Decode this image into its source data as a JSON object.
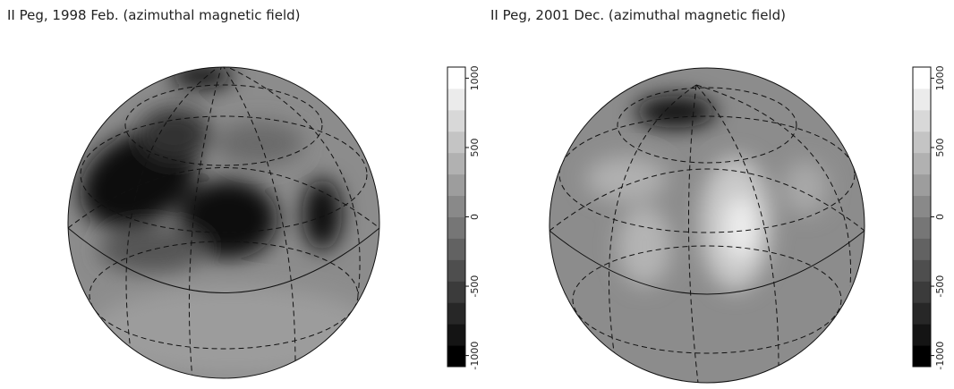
{
  "chart_data": [
    {
      "type": "map",
      "title": "II Peg, 1998 Feb. (azimuthal magnetic field)",
      "clim": [
        -1080,
        1080
      ],
      "cticks": [
        -1000,
        -500,
        0,
        500,
        1000
      ]
    },
    {
      "type": "map",
      "title": "II Peg, 2001 Dec. (azimuthal magnetic field)",
      "clim": [
        -1080,
        1080
      ],
      "cticks": [
        -1000,
        -500,
        0,
        500,
        1000
      ]
    }
  ]
}
